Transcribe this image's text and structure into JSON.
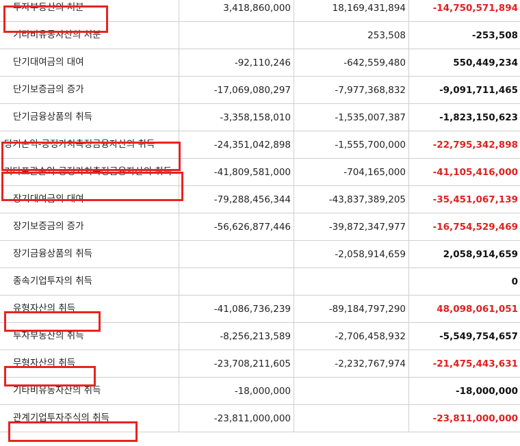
{
  "rows": [
    {
      "label": "투자부동산의 처분",
      "current": "3,418,860,000",
      "previous": "18,169,431,894",
      "diff": "-14,750,571,894",
      "diff_color": "red",
      "highlight": true
    },
    {
      "label": "기타비유동자산의 처분",
      "current": "",
      "previous": "253,508",
      "diff": "-253,508",
      "diff_color": "black",
      "highlight": false
    },
    {
      "label": "단기대여금의 대여",
      "current": "-92,110,246",
      "previous": "-642,559,480",
      "diff": "550,449,234",
      "diff_color": "black",
      "highlight": false
    },
    {
      "label": "단기보증금의 증가",
      "current": "-17,069,080,297",
      "previous": "-7,977,368,832",
      "diff": "-9,091,711,465",
      "diff_color": "black",
      "highlight": false
    },
    {
      "label": "단기금융상품의 취득",
      "current": "-3,358,158,010",
      "previous": "-1,535,007,387",
      "diff": "-1,823,150,623",
      "diff_color": "black",
      "highlight": false
    },
    {
      "label": "당기손익-공정가치측정금융자산의 취득",
      "current": "-24,351,042,898",
      "previous": "-1,555,700,000",
      "diff": "-22,795,342,898",
      "diff_color": "red",
      "highlight": true
    },
    {
      "label": "기타포괄손익-공정가치측정금융자산의 취득",
      "current": "-41,809,581,000",
      "previous": "-704,165,000",
      "diff": "-41,105,416,000",
      "diff_color": "red",
      "highlight": true
    },
    {
      "label": "장기대여금의 대여",
      "current": "-79,288,456,344",
      "previous": "-43,837,389,205",
      "diff": "-35,451,067,139",
      "diff_color": "red",
      "highlight": false
    },
    {
      "label": "장기보증금의 증가",
      "current": "-56,626,877,446",
      "previous": "-39,872,347,977",
      "diff": "-16,754,529,469",
      "diff_color": "red",
      "highlight": false
    },
    {
      "label": "장기금융상품의 취득",
      "current": "",
      "previous": "-2,058,914,659",
      "diff": "2,058,914,659",
      "diff_color": "black",
      "highlight": false
    },
    {
      "label": "종속기업투자의 취득",
      "current": "",
      "previous": "",
      "diff": "0",
      "diff_color": "black",
      "highlight": false
    },
    {
      "label": "유형자산의 취득",
      "current": "-41,086,736,239",
      "previous": "-89,184,797,290",
      "diff": "48,098,061,051",
      "diff_color": "red",
      "highlight": true
    },
    {
      "label": "투자부동산의 취득",
      "current": "-8,256,213,589",
      "previous": "-2,706,458,932",
      "diff": "-5,549,754,657",
      "diff_color": "black",
      "highlight": false
    },
    {
      "label": "무형자산의 취득",
      "current": "-23,708,211,605",
      "previous": "-2,232,767,974",
      "diff": "-21,475,443,631",
      "diff_color": "red",
      "highlight": true
    },
    {
      "label": "기타비유동자산의 취득",
      "current": "-18,000,000",
      "previous": "",
      "diff": "-18,000,000",
      "diff_color": "black",
      "highlight": false
    },
    {
      "label": "관계기업투자주식의 취득",
      "current": "-23,811,000,000",
      "previous": "",
      "diff": "-23,811,000,000",
      "diff_color": "red",
      "highlight": true
    }
  ],
  "colors": {
    "highlight_border": "#e8231f",
    "negative_text": "#e0201e",
    "grid": "#cfcfcf"
  }
}
